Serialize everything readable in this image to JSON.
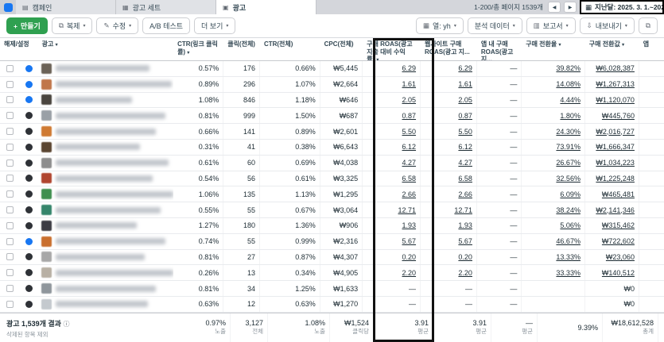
{
  "nav": {
    "tabs": [
      {
        "label": "캠페인",
        "active": false
      },
      {
        "label": "광고 세트",
        "active": false
      },
      {
        "label": "광고",
        "active": true
      }
    ],
    "pagination": "1-200/총 페이지 1539개",
    "date_range": "지난달: 2025. 3. 1.~2025. 3.3..."
  },
  "toolbar": {
    "create": "만들기",
    "duplicate": "복제",
    "edit": "수정",
    "ab_test": "A/B 테스트",
    "more": "더 보기",
    "columns": "열: yh",
    "breakdown": "분석 데이터",
    "report": "보고서",
    "export": "내보내기"
  },
  "icons": {
    "campaign": "▤",
    "adset": "▦",
    "ads": "▣",
    "prev": "◀",
    "next": "▶",
    "calendar": "▦",
    "plus": "+",
    "duplicate": "⧉",
    "pencil": "✎",
    "chevron": "▾",
    "columns": "▦",
    "chart": "▥",
    "export": "⇩",
    "expand": "⧉",
    "caret": "▼",
    "info": "ⓘ"
  },
  "table": {
    "headers": {
      "toggle": "해제/설정",
      "ad": "광고",
      "ctr_link": "CTR(링크 클릭률)",
      "clicks": "클릭(전체)",
      "ctr_all": "CTR(전체)",
      "cpc": "CPC(전체)",
      "roas": "구매 ROAS(광고 지출 대비 수익률)",
      "web_roas": "웹사이트 구매 ROAS(광고 지...",
      "app_roas": "앱 내 구매 ROAS(광고 지...",
      "cvr": "구매 전환율",
      "conv_value": "구매 전환값",
      "app": "앱"
    },
    "rows": [
      {
        "toggle": "on",
        "thumb": "#6b6257",
        "ctr_link": "0.57%",
        "clicks": "176",
        "ctr_all": "0.66%",
        "cpc": "₩5,445",
        "roas": "6.29",
        "web_roas": "6.29",
        "app_roas": "—",
        "cvr": "39.82%",
        "conv_value": "₩6,028,387"
      },
      {
        "toggle": "on",
        "thumb": "#c0764a",
        "ctr_link": "0.89%",
        "clicks": "296",
        "ctr_all": "1.07%",
        "cpc": "₩2,664",
        "roas": "1.61",
        "web_roas": "1.61",
        "app_roas": "—",
        "cvr": "14.08%",
        "conv_value": "₩1,267,313"
      },
      {
        "toggle": "on",
        "thumb": "#4a453f",
        "ctr_link": "1.08%",
        "clicks": "846",
        "ctr_all": "1.18%",
        "cpc": "₩646",
        "roas": "2.05",
        "web_roas": "2.05",
        "app_roas": "—",
        "cvr": "4.44%",
        "conv_value": "₩1,120,070"
      },
      {
        "toggle": "off",
        "thumb": "#9aa0a6",
        "ctr_link": "0.81%",
        "clicks": "999",
        "ctr_all": "1.50%",
        "cpc": "₩687",
        "roas": "0.87",
        "web_roas": "0.87",
        "app_roas": "—",
        "cvr": "1.80%",
        "conv_value": "₩445,760"
      },
      {
        "toggle": "off",
        "thumb": "#cf7a33",
        "ctr_link": "0.66%",
        "clicks": "141",
        "ctr_all": "0.89%",
        "cpc": "₩2,601",
        "roas": "5.50",
        "web_roas": "5.50",
        "app_roas": "—",
        "cvr": "24.30%",
        "conv_value": "₩2,016,727"
      },
      {
        "toggle": "off",
        "thumb": "#5b4632",
        "ctr_link": "0.31%",
        "clicks": "41",
        "ctr_all": "0.38%",
        "cpc": "₩6,643",
        "roas": "6.12",
        "web_roas": "6.12",
        "app_roas": "—",
        "cvr": "73.91%",
        "conv_value": "₩1,666,347"
      },
      {
        "toggle": "off",
        "thumb": "#8e8e8e",
        "ctr_link": "0.61%",
        "clicks": "60",
        "ctr_all": "0.69%",
        "cpc": "₩4,038",
        "roas": "4.27",
        "web_roas": "4.27",
        "app_roas": "—",
        "cvr": "26.67%",
        "conv_value": "₩1,034,223"
      },
      {
        "toggle": "off",
        "thumb": "#b0452f",
        "ctr_link": "0.54%",
        "clicks": "56",
        "ctr_all": "0.61%",
        "cpc": "₩3,325",
        "roas": "6.58",
        "web_roas": "6.58",
        "app_roas": "—",
        "cvr": "32.56%",
        "conv_value": "₩1,225,248"
      },
      {
        "toggle": "off",
        "thumb": "#3f8f4f",
        "ctr_link": "1.06%",
        "clicks": "135",
        "ctr_all": "1.13%",
        "cpc": "₩1,295",
        "roas": "2.66",
        "web_roas": "2.66",
        "app_roas": "—",
        "cvr": "6.09%",
        "conv_value": "₩465,481"
      },
      {
        "toggle": "off",
        "thumb": "#35856b",
        "ctr_link": "0.55%",
        "clicks": "55",
        "ctr_all": "0.67%",
        "cpc": "₩3,064",
        "roas": "12.71",
        "web_roas": "12.71",
        "app_roas": "—",
        "cvr": "38.24%",
        "conv_value": "₩2,141,346"
      },
      {
        "toggle": "off",
        "thumb": "#3c3c44",
        "ctr_link": "1.27%",
        "clicks": "180",
        "ctr_all": "1.36%",
        "cpc": "₩906",
        "roas": "1.93",
        "web_roas": "1.93",
        "app_roas": "—",
        "cvr": "5.06%",
        "conv_value": "₩315,462"
      },
      {
        "toggle": "on",
        "thumb": "#c96f2e",
        "ctr_link": "0.74%",
        "clicks": "55",
        "ctr_all": "0.99%",
        "cpc": "₩2,316",
        "roas": "5.67",
        "web_roas": "5.67",
        "app_roas": "—",
        "cvr": "46.67%",
        "conv_value": "₩722,602"
      },
      {
        "toggle": "off",
        "thumb": "#a8a8a8",
        "ctr_link": "0.81%",
        "clicks": "27",
        "ctr_all": "0.87%",
        "cpc": "₩4,307",
        "roas": "0.20",
        "web_roas": "0.20",
        "app_roas": "—",
        "cvr": "13.33%",
        "conv_value": "₩23,060"
      },
      {
        "toggle": "off",
        "thumb": "#b8b0a4",
        "ctr_link": "0.26%",
        "clicks": "13",
        "ctr_all": "0.34%",
        "cpc": "₩4,905",
        "roas": "2.20",
        "web_roas": "2.20",
        "app_roas": "—",
        "cvr": "33.33%",
        "conv_value": "₩140,512"
      },
      {
        "toggle": "off",
        "thumb": "#8f969c",
        "ctr_link": "0.81%",
        "clicks": "34",
        "ctr_all": "1.25%",
        "cpc": "₩1,633",
        "roas": "—",
        "web_roas": "—",
        "app_roas": "—",
        "cvr": "",
        "conv_value": "₩0"
      },
      {
        "toggle": "off",
        "thumb": "#c4c9ce",
        "ctr_link": "0.63%",
        "clicks": "12",
        "ctr_all": "0.63%",
        "cpc": "₩1,270",
        "roas": "—",
        "web_roas": "—",
        "app_roas": "—",
        "cvr": "",
        "conv_value": "₩0"
      }
    ],
    "footer": {
      "results": "광고 1,539개 결과",
      "excluded": "삭제된 항목 제외",
      "ctr_link": "0.97%",
      "ctr_link_sub": "노출",
      "clicks": "3,127",
      "clicks_sub": "전체",
      "ctr_all": "1.08%",
      "ctr_all_sub": "노출",
      "cpc": "₩1,524",
      "cpc_sub": "클릭당",
      "roas": "3.91",
      "roas_sub": "평균",
      "web_roas": "3.91",
      "web_roas_sub": "평균",
      "app_roas": "—",
      "app_roas_sub": "평균",
      "cvr": "9.39%",
      "cvr_sub": "",
      "conv_value": "₩18,612,528",
      "conv_value_sub": "총계"
    }
  },
  "colors": {
    "accent_blue": "#1877f2",
    "create_green": "#2fa050",
    "highlight_border": "#111111"
  }
}
